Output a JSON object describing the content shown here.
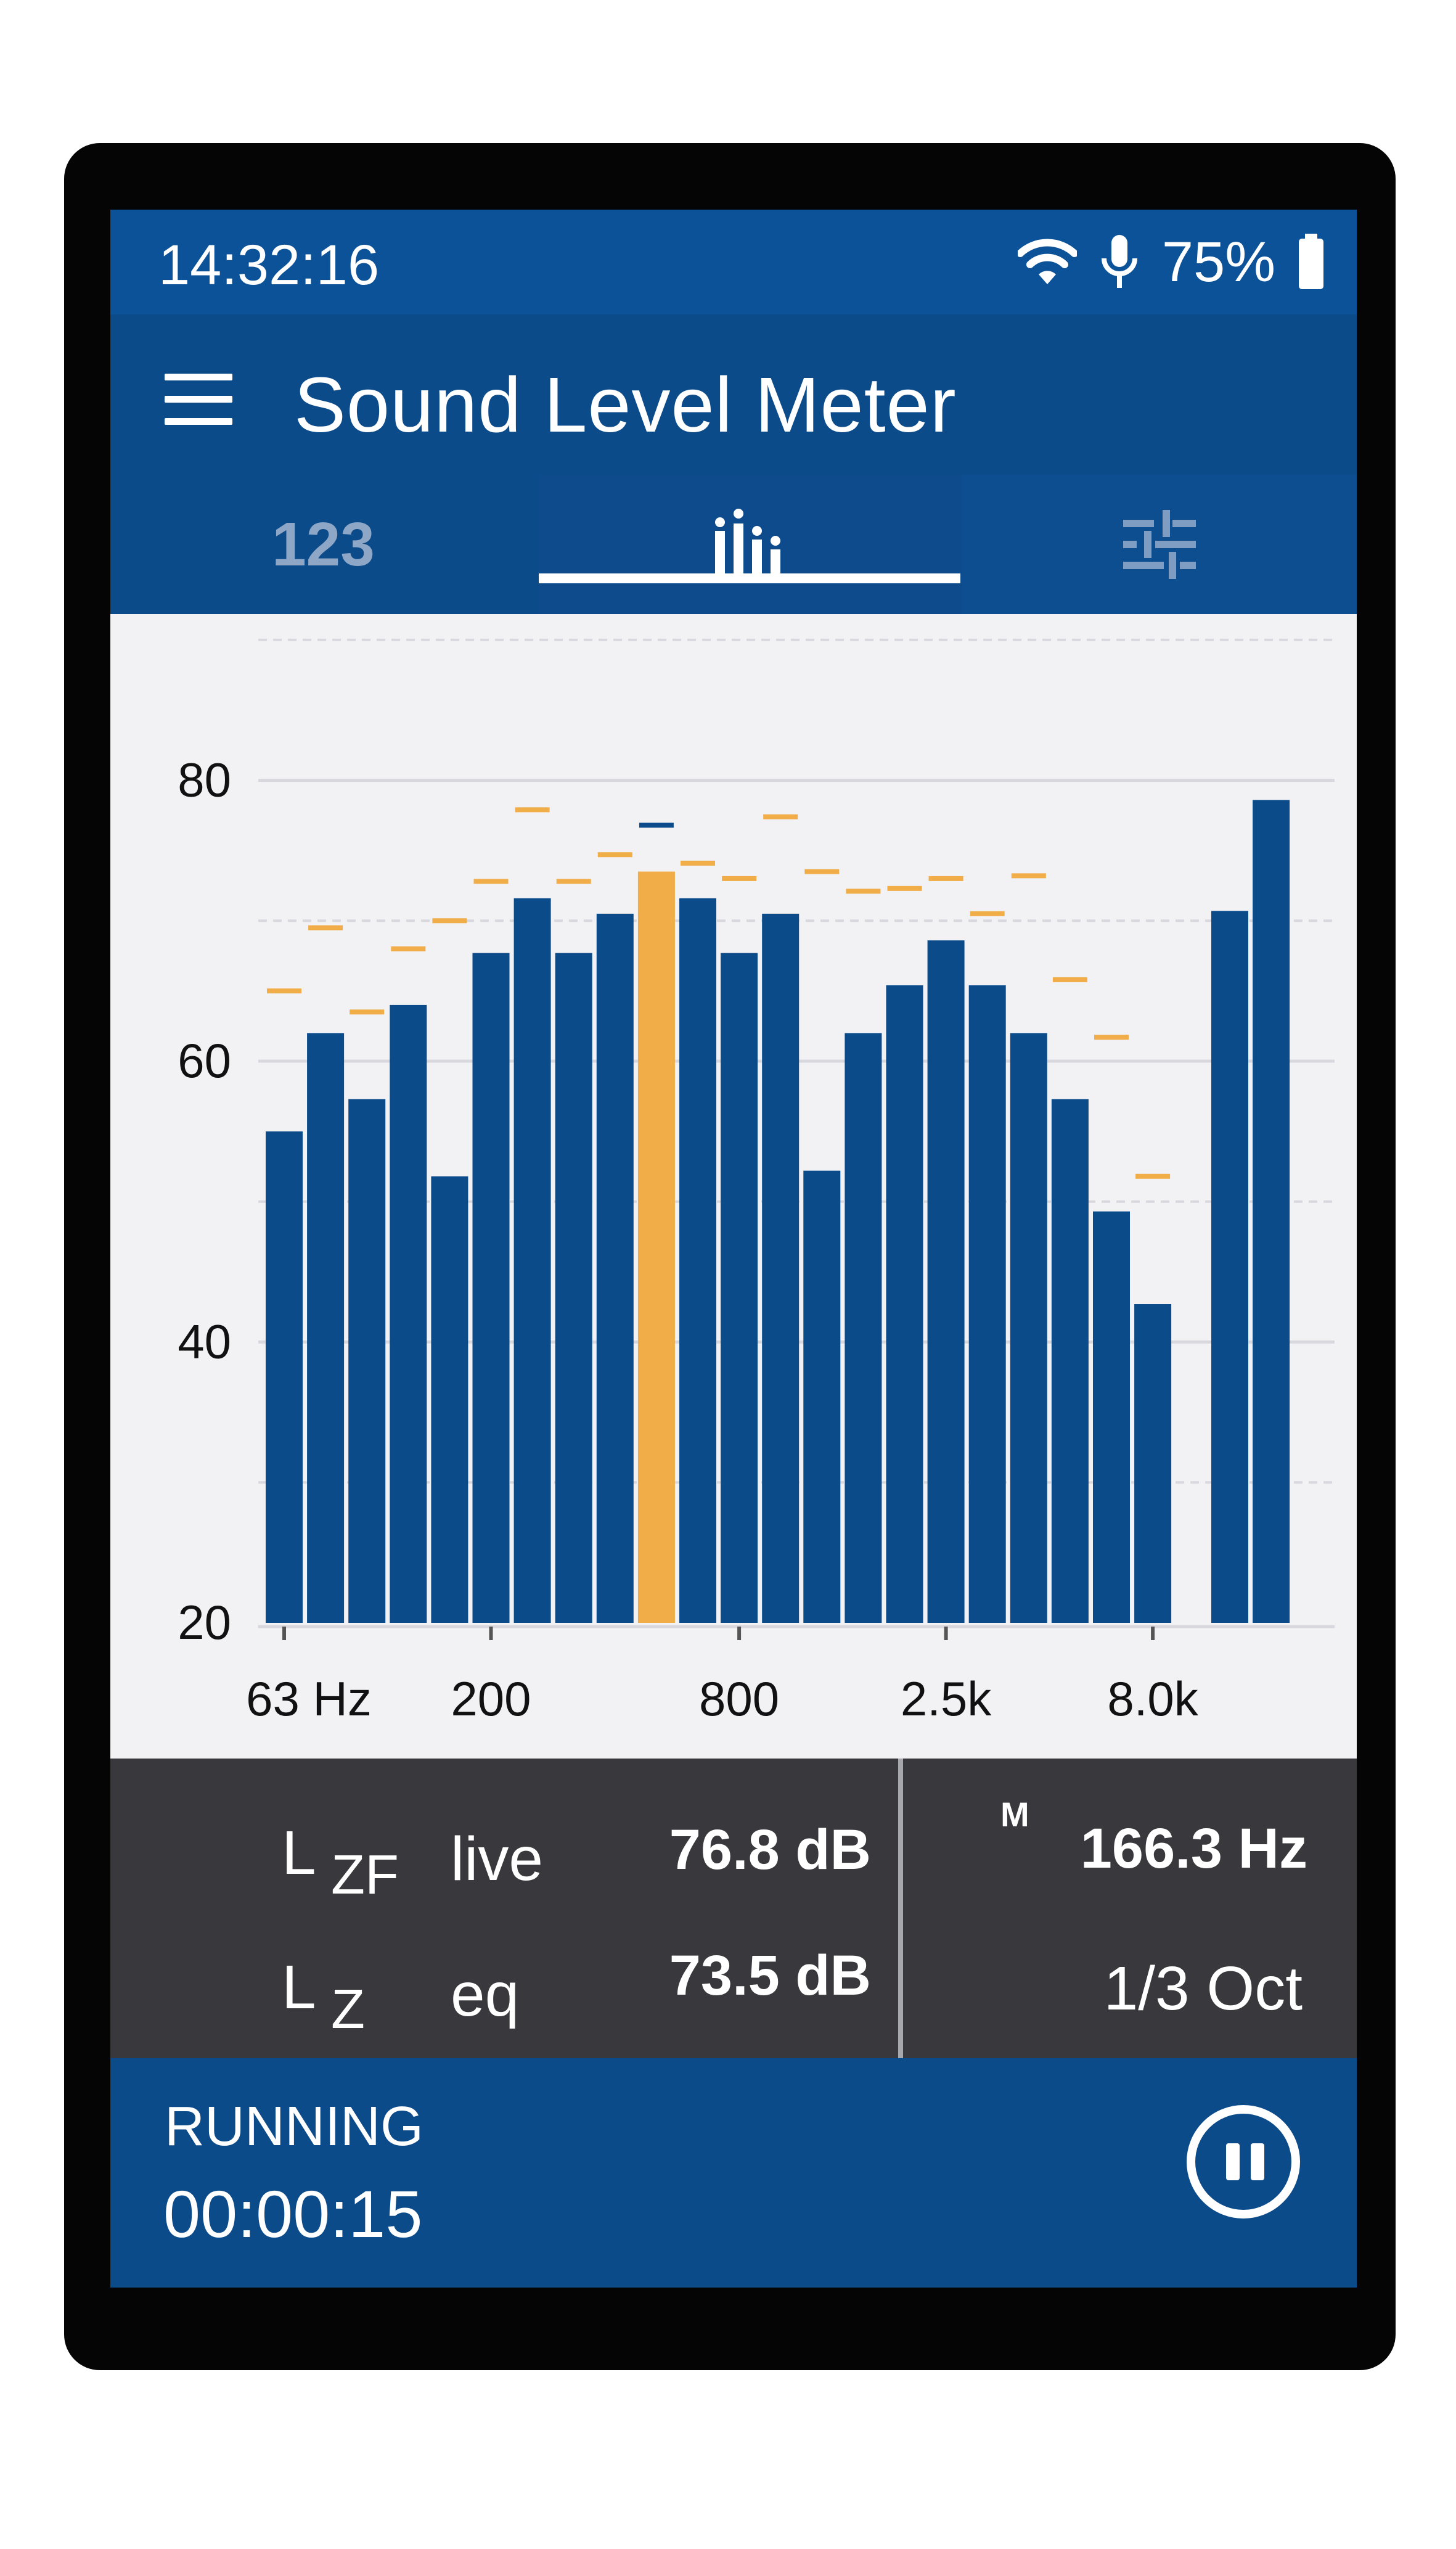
{
  "status_bar": {
    "time": "14:32:16",
    "icons": [
      "wifi-icon",
      "microphone-icon",
      "battery-icon"
    ],
    "battery_percent": "75%",
    "battery_level": 0.75
  },
  "app_bar": {
    "title": "Sound Level Meter",
    "menu_icon": "hamburger-menu-icon"
  },
  "tabs": [
    {
      "label": "123",
      "icon": "numbers-tab",
      "selected": false
    },
    {
      "label": "",
      "icon": "bar-chart-icon",
      "selected": true
    },
    {
      "label": "",
      "icon": "sliders-icon",
      "selected": false
    }
  ],
  "chart_data": {
    "type": "bar",
    "ylim": [
      20,
      100
    ],
    "yticks": [
      20,
      40,
      60,
      80,
      100
    ],
    "y_unit": "dB",
    "xtick_labels": [
      "63 Hz",
      "200",
      "800",
      "2.5k",
      "8.0k"
    ],
    "xtick_bar_index": [
      0,
      5,
      11,
      16,
      21
    ],
    "bands": [
      {
        "level": 55.0,
        "max": 65.0
      },
      {
        "level": 62.0,
        "max": 69.5
      },
      {
        "level": 57.3,
        "max": 63.5
      },
      {
        "level": 64.0,
        "max": 68.0
      },
      {
        "level": 51.8,
        "max": 70.0
      },
      {
        "level": 67.7,
        "max": 72.8
      },
      {
        "level": 71.6,
        "max": 77.9
      },
      {
        "level": 67.7,
        "max": 72.8
      },
      {
        "level": 70.5,
        "max": 74.7
      },
      {
        "level": 73.5,
        "max": 76.8
      },
      {
        "level": 71.6,
        "max": 74.1
      },
      {
        "level": 67.7,
        "max": 73.0
      },
      {
        "level": 70.5,
        "max": 77.4
      },
      {
        "level": 52.2,
        "max": 73.5
      },
      {
        "level": 62.0,
        "max": 72.1
      },
      {
        "level": 65.4,
        "max": 72.3
      },
      {
        "level": 68.6,
        "max": 73.0
      },
      {
        "level": 65.4,
        "max": 70.5
      },
      {
        "level": 62.0,
        "max": 73.2
      },
      {
        "level": 57.3,
        "max": 65.8
      },
      {
        "level": 49.3,
        "max": 61.7
      },
      {
        "level": 42.7,
        "max": 51.8
      }
    ],
    "summary_bars": [
      70.7,
      78.6
    ],
    "highlight_index": 9,
    "colors": {
      "bar": "#0c4b8a",
      "highlight": "#f0ad48",
      "max_marker": "#f0ad48",
      "highlight_max_marker": "#0c4b8a",
      "grid": "#d8d8de"
    },
    "grid": true
  },
  "readout": {
    "live_symbol": "L",
    "live_sub": "ZF",
    "live_label": "live",
    "live_value": "76.8 dB",
    "eq_symbol": "L",
    "eq_sub": "Z",
    "eq_label": "eq",
    "eq_value": "73.5 dB",
    "marker_label": "M",
    "marker_freq": "166.3 Hz",
    "band_mode": "1/3 Oct"
  },
  "bottom_bar": {
    "status": "RUNNING",
    "elapsed": "00:00:15",
    "pause_icon": "pause-icon"
  }
}
